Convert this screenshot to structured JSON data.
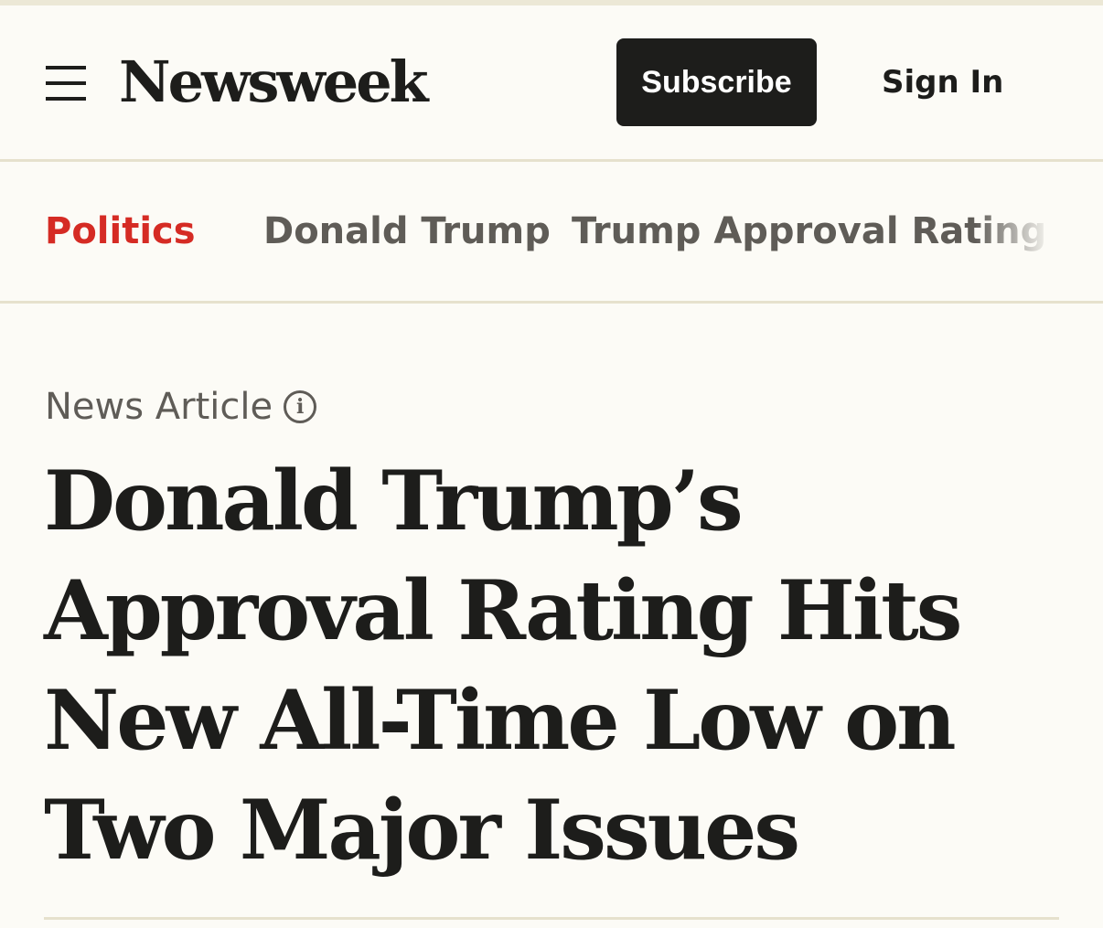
{
  "header": {
    "logo": "Newsweek",
    "subscribe_label": "Subscribe",
    "signin_label": "Sign In"
  },
  "nav": {
    "items": [
      {
        "label": "Politics",
        "active": true
      },
      {
        "label": "Donald Trump"
      },
      {
        "label": "Trump Approval Rating"
      }
    ]
  },
  "article": {
    "type_label": "News Article",
    "info_glyph": "i",
    "headline": "Donald Trump’s Approval Rating Hits New All-Time Low on Two Major Issues"
  },
  "colors": {
    "accent": "#d52b24",
    "background": "#fcfbf6",
    "text": "#1d1d1b",
    "muted": "#5f5c57"
  }
}
